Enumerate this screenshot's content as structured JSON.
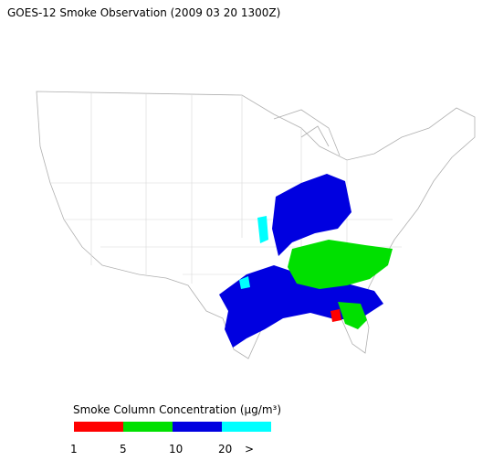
{
  "title": "GOES-12 Smoke Observation (2009 03 20  1300Z)",
  "legend": {
    "title": "Smoke Column Concentration (μg/m³)",
    "colors": [
      "#ff0000",
      "#00e000",
      "#0000e0",
      "#00ffff"
    ],
    "labels": [
      "1",
      "5",
      "10",
      "20",
      ">"
    ]
  }
}
